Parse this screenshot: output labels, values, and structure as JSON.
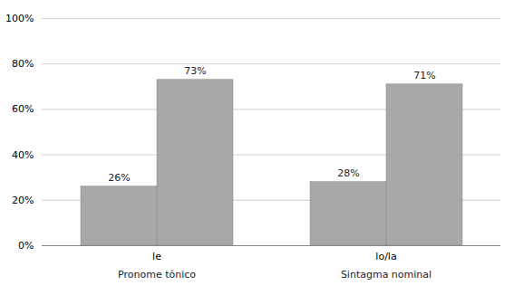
{
  "chart_data": {
    "type": "bar",
    "categories": [
      "le",
      "lo/la"
    ],
    "series": [
      {
        "color": "#a8a8a8",
        "values": [
          0.26,
          0.28
        ],
        "value_labels": [
          "26%",
          "28%"
        ]
      },
      {
        "color": "#a8a8a8",
        "values": [
          0.73,
          0.71
        ],
        "value_labels": [
          "73%",
          "71%"
        ]
      }
    ],
    "ylim": [
      0,
      1.0
    ],
    "yticks": [
      {
        "value": 0.0,
        "label": "0%"
      },
      {
        "value": 0.2,
        "label": "20%"
      },
      {
        "value": 0.4,
        "label": "40%"
      },
      {
        "value": 0.6,
        "label": "60%"
      },
      {
        "value": 0.8,
        "label": "80%"
      },
      {
        "value": 1.0,
        "label": "100%"
      }
    ],
    "grid": true,
    "data_labels": true,
    "annotations": [
      {
        "text": "Pronome tônico",
        "x": "le"
      },
      {
        "text": "Sintagma nominal",
        "x": "lo/la"
      }
    ]
  }
}
